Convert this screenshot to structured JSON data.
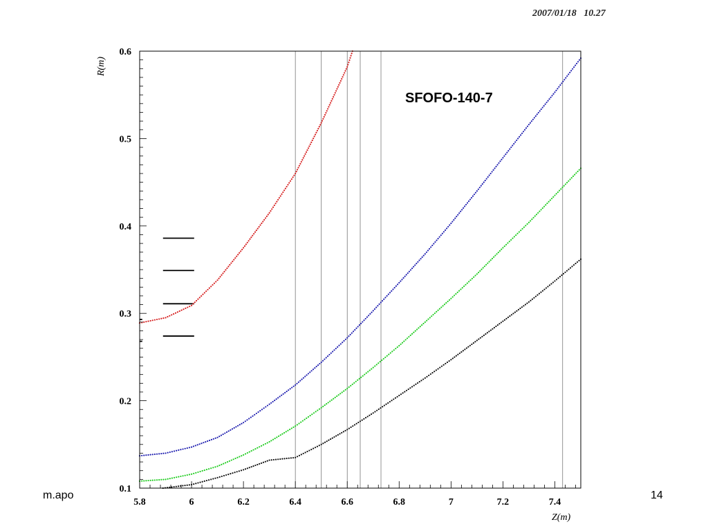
{
  "header": {
    "timestamp": "2007/01/18   10.27"
  },
  "footer": {
    "left": "m.apo",
    "right": "14"
  },
  "chart_data": {
    "type": "scatter",
    "title": "SFOFO-140-7",
    "xlabel": "Z(m)",
    "ylabel": "R(m)",
    "xlim": [
      5.8,
      7.5
    ],
    "ylim": [
      0.1,
      0.6
    ],
    "x_ticks": [
      "5.8",
      "6",
      "6.2",
      "6.4",
      "6.6",
      "6.8",
      "7",
      "7.2",
      "7.4"
    ],
    "y_ticks": [
      "0.1",
      "0.2",
      "0.3",
      "0.4",
      "0.5",
      "0.6"
    ],
    "vertical_lines": [
      6.4,
      6.5,
      6.6,
      6.65,
      6.73,
      7.43
    ],
    "horizontal_segments": [
      {
        "x": [
          5.89,
          6.01
        ],
        "y": 0.386
      },
      {
        "x": [
          5.89,
          6.01
        ],
        "y": 0.349
      },
      {
        "x": [
          5.89,
          6.01
        ],
        "y": 0.311
      },
      {
        "x": [
          5.89,
          6.01
        ],
        "y": 0.274
      },
      {
        "x": [
          5.8,
          5.81
        ],
        "y": 0.293
      },
      {
        "x": [
          5.8,
          5.81
        ],
        "y": 0.268
      }
    ],
    "series": [
      {
        "color": "#d62020",
        "points": [
          [
            5.8,
            0.289
          ],
          [
            5.9,
            0.295
          ],
          [
            6.0,
            0.309
          ],
          [
            6.1,
            0.338
          ],
          [
            6.2,
            0.375
          ],
          [
            6.3,
            0.415
          ],
          [
            6.4,
            0.46
          ],
          [
            6.5,
            0.518
          ],
          [
            6.6,
            0.582
          ],
          [
            6.62,
            0.6
          ]
        ]
      },
      {
        "color": "#2020b0",
        "points": [
          [
            5.8,
            0.137
          ],
          [
            5.9,
            0.14
          ],
          [
            6.0,
            0.147
          ],
          [
            6.1,
            0.158
          ],
          [
            6.2,
            0.175
          ],
          [
            6.3,
            0.196
          ],
          [
            6.4,
            0.218
          ],
          [
            6.5,
            0.244
          ],
          [
            6.6,
            0.272
          ],
          [
            6.7,
            0.303
          ],
          [
            6.8,
            0.335
          ],
          [
            6.9,
            0.368
          ],
          [
            7.0,
            0.403
          ],
          [
            7.1,
            0.44
          ],
          [
            7.2,
            0.478
          ],
          [
            7.3,
            0.516
          ],
          [
            7.4,
            0.553
          ],
          [
            7.5,
            0.592
          ]
        ]
      },
      {
        "color": "#22cc22",
        "points": [
          [
            5.8,
            0.108
          ],
          [
            5.9,
            0.11
          ],
          [
            6.0,
            0.116
          ],
          [
            6.1,
            0.125
          ],
          [
            6.2,
            0.138
          ],
          [
            6.3,
            0.153
          ],
          [
            6.4,
            0.171
          ],
          [
            6.5,
            0.192
          ],
          [
            6.6,
            0.214
          ],
          [
            6.7,
            0.238
          ],
          [
            6.8,
            0.263
          ],
          [
            6.9,
            0.29
          ],
          [
            7.0,
            0.317
          ],
          [
            7.1,
            0.345
          ],
          [
            7.2,
            0.375
          ],
          [
            7.3,
            0.404
          ],
          [
            7.4,
            0.435
          ],
          [
            7.5,
            0.466
          ]
        ]
      },
      {
        "color": "#111111",
        "points": [
          [
            5.89,
            0.1
          ],
          [
            6.0,
            0.104
          ],
          [
            6.1,
            0.112
          ],
          [
            6.2,
            0.121
          ],
          [
            6.3,
            0.132
          ],
          [
            6.4,
            0.135
          ],
          [
            6.5,
            0.15
          ],
          [
            6.6,
            0.167
          ],
          [
            6.7,
            0.186
          ],
          [
            6.8,
            0.206
          ],
          [
            6.9,
            0.226
          ],
          [
            7.0,
            0.247
          ],
          [
            7.1,
            0.269
          ],
          [
            7.2,
            0.291
          ],
          [
            7.3,
            0.313
          ],
          [
            7.4,
            0.337
          ],
          [
            7.5,
            0.362
          ]
        ]
      }
    ]
  }
}
